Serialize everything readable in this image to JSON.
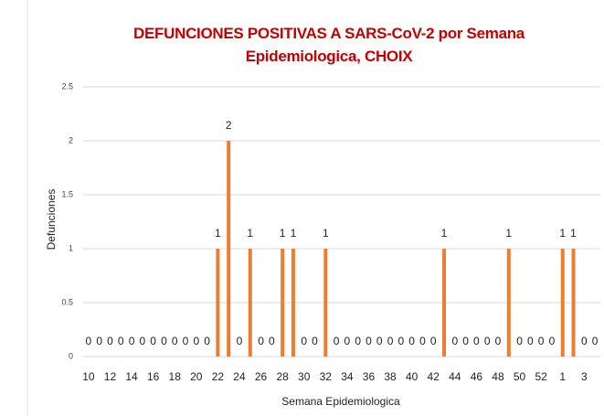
{
  "chart_data": {
    "type": "bar",
    "title": "DEFUNCIONES POSITIVAS A SARS-CoV-2 por Semana Epidemiologica, CHOIX",
    "x_label": "Semana Epidemiologica",
    "y_label": "Defunciones",
    "categories": [
      10,
      null,
      12,
      null,
      14,
      null,
      16,
      null,
      18,
      null,
      20,
      null,
      22,
      null,
      24,
      null,
      26,
      null,
      28,
      null,
      30,
      null,
      32,
      null,
      34,
      null,
      36,
      null,
      38,
      null,
      40,
      null,
      42,
      null,
      44,
      null,
      46,
      null,
      48,
      null,
      50,
      null,
      52,
      null,
      1,
      null,
      3,
      null
    ],
    "values": [
      0,
      0,
      0,
      0,
      0,
      0,
      0,
      0,
      0,
      0,
      0,
      0,
      1,
      2,
      0,
      1,
      0,
      0,
      1,
      1,
      0,
      0,
      1,
      0,
      0,
      0,
      0,
      0,
      0,
      0,
      0,
      0,
      0,
      1,
      0,
      0,
      0,
      0,
      0,
      1,
      0,
      0,
      0,
      0,
      1,
      1,
      0,
      0
    ],
    "color": "#ed7d31",
    "ylim": [
      0,
      2.5
    ],
    "yticks": [
      0,
      0.5,
      1,
      1.5,
      2,
      2.5
    ],
    "grid": true
  }
}
